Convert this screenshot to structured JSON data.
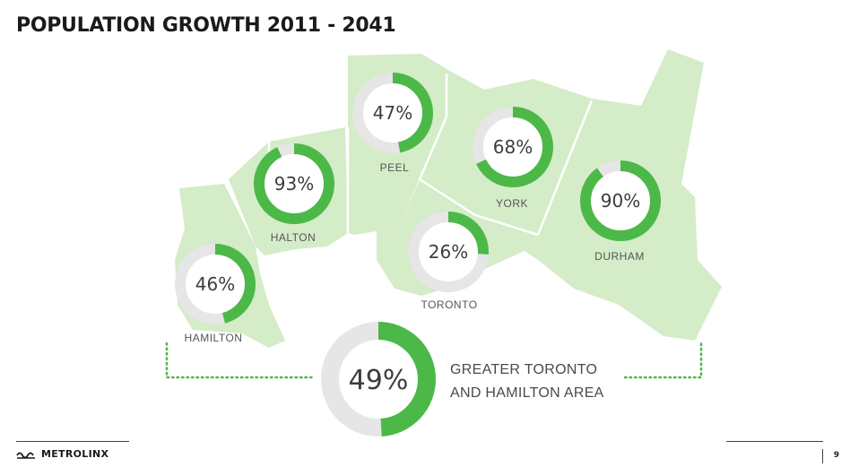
{
  "title": "POPULATION GROWTH 2011 - 2041",
  "colors": {
    "land": "#d4ecc8",
    "land_border": "#ffffff",
    "ring_track": "#e6e6e6",
    "ring_fill": "#4cb848",
    "dotted": "#4cb848"
  },
  "regions": [
    {
      "name": "HAMILTON",
      "pct_label": "46%",
      "value": 46
    },
    {
      "name": "HALTON",
      "pct_label": "93%",
      "value": 93
    },
    {
      "name": "PEEL",
      "pct_label": "47%",
      "value": 47
    },
    {
      "name": "YORK",
      "pct_label": "68%",
      "value": 68
    },
    {
      "name": "TORONTO",
      "pct_label": "26%",
      "value": 26
    },
    {
      "name": "DURHAM",
      "pct_label": "90%",
      "value": 90
    }
  ],
  "total": {
    "pct_label": "49%",
    "value": 49,
    "label_line1": "GREATER TORONTO",
    "label_line2": "AND HAMILTON AREA"
  },
  "footer": {
    "logo_text": "METROLINX",
    "page_number": "9"
  }
}
